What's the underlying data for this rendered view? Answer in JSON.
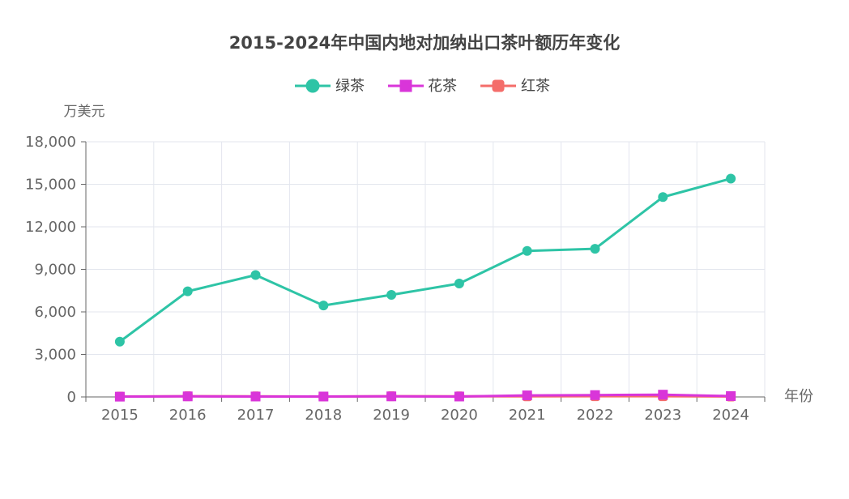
{
  "chart_data": {
    "type": "line",
    "title": "2015-2024年中国内地对加纳出口茶叶额历年变化",
    "xlabel": "年份",
    "ylabel": "万美元",
    "categories": [
      "2015",
      "2016",
      "2017",
      "2018",
      "2019",
      "2020",
      "2021",
      "2022",
      "2023",
      "2024"
    ],
    "ylim": [
      0,
      18000
    ],
    "yticks": [
      0,
      3000,
      6000,
      9000,
      12000,
      15000,
      18000
    ],
    "ytick_labels": [
      "0",
      "3,000",
      "6,000",
      "9,000",
      "12,000",
      "15,000",
      "18,000"
    ],
    "grid": true,
    "legend_position": "top-center",
    "series": [
      {
        "name": "绿茶",
        "marker": "circle",
        "color": "#2ec4a6",
        "values": [
          3900,
          7450,
          8600,
          6450,
          7200,
          8000,
          10300,
          10450,
          14100,
          15400
        ]
      },
      {
        "name": "花茶",
        "marker": "square",
        "color": "#d935d9",
        "values": [
          20,
          40,
          30,
          30,
          40,
          30,
          110,
          130,
          160,
          60
        ]
      },
      {
        "name": "红茶",
        "marker": "roundrect",
        "color": "#f46d6a",
        "values": [
          30,
          50,
          40,
          30,
          50,
          40,
          40,
          50,
          50,
          30
        ]
      }
    ]
  }
}
